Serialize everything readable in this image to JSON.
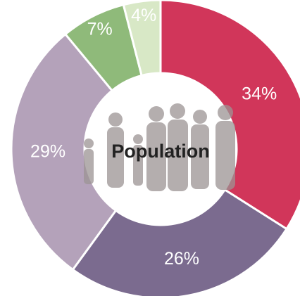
{
  "chart_data": {
    "type": "pie",
    "donut": true,
    "center_label": "Population",
    "categories": [
      null,
      null,
      null,
      null,
      null
    ],
    "values": [
      34,
      26,
      29,
      7,
      4
    ],
    "value_labels": [
      "34%",
      "26%",
      "29%",
      "7%",
      "4%"
    ],
    "colors": [
      "#d1365a",
      "#7b6b8f",
      "#b4a2ba",
      "#8fba7a",
      "#d8e8c6"
    ]
  }
}
